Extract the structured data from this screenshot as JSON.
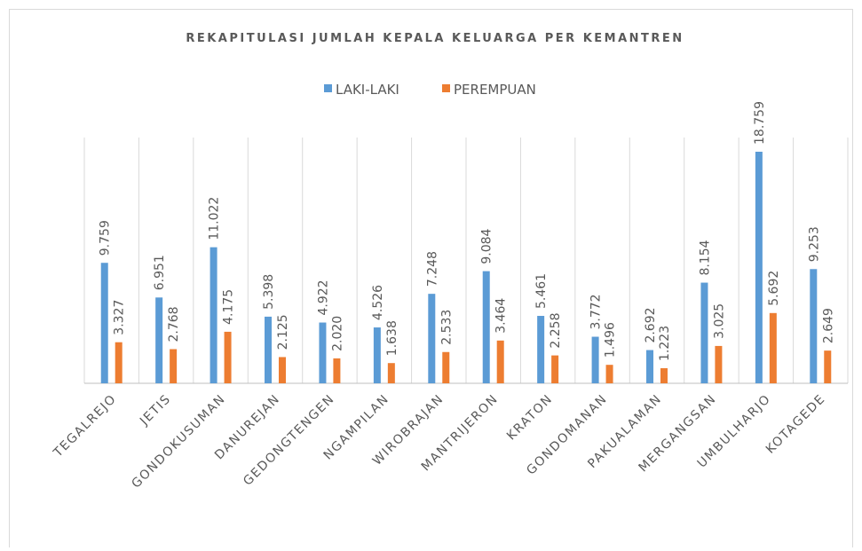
{
  "chart_data": {
    "type": "bar",
    "title": "REKAPITULASI JUMLAH KEPALA KELUARGA PER KEMANTREN",
    "categories": [
      "TEGALREJO",
      "JETIS",
      "GONDOKUSUMAN",
      "DANUREJAN",
      "GEDONGTENGEN",
      "NGAMPILAN",
      "WIROBRAJAN",
      "MANTRIJERON",
      "KRATON",
      "GONDOMANAN",
      "PAKUALAMAN",
      "MERGANGSAN",
      "UMBULHARJO",
      "KOTAGEDE"
    ],
    "series": [
      {
        "name": "LAKI-LAKI",
        "color": "#5b9bd5",
        "values": [
          9759,
          6951,
          11022,
          5398,
          4922,
          4526,
          7248,
          9084,
          5461,
          3772,
          2692,
          8154,
          18759,
          9253
        ],
        "value_labels": [
          "9.759",
          "6.951",
          "11.022",
          "5.398",
          "4.922",
          "4.526",
          "7.248",
          "9.084",
          "5.461",
          "3.772",
          "2.692",
          "8.154",
          "18.759",
          "9.253"
        ]
      },
      {
        "name": "PEREMPUAN",
        "color": "#ed7d31",
        "values": [
          3327,
          2768,
          4175,
          2125,
          2020,
          1638,
          2533,
          3464,
          2258,
          1496,
          1223,
          3025,
          5692,
          2649
        ],
        "value_labels": [
          "3.327",
          "2.768",
          "4.175",
          "2.125",
          "2.020",
          "1.638",
          "2.533",
          "3.464",
          "2.258",
          "1.496",
          "1.223",
          "3.025",
          "5.692",
          "2.649"
        ]
      }
    ],
    "legend": "top"
  }
}
